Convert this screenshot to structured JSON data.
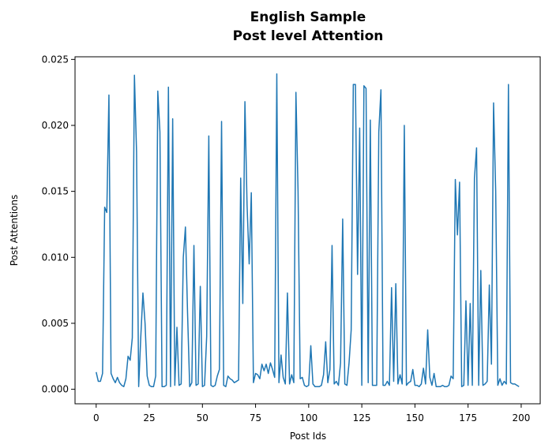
{
  "chart_data": {
    "type": "line",
    "title": "English Sample",
    "title_color": "#0000ff",
    "subtitle": "Post level Attention",
    "subtitle_color": "#ff0000",
    "xlabel": "Post Ids",
    "ylabel": "Post Attentions",
    "color": "#1f77b4",
    "xlim": [
      -9.95,
      208.95
    ],
    "xticks": [
      0,
      25,
      50,
      75,
      100,
      125,
      150,
      175,
      200
    ],
    "ylim": [
      -0.0011,
      0.0252
    ],
    "yticks": [
      {
        "value": 0,
        "label": "0.000"
      },
      0.005,
      {
        "value": 0.01,
        "label": "0.010"
      },
      0.015,
      {
        "value": 0.02,
        "label": "0.020"
      },
      0.025
    ],
    "x": [
      0,
      1,
      2,
      3,
      4,
      5,
      6,
      7,
      8,
      9,
      10,
      11,
      12,
      13,
      14,
      15,
      16,
      17,
      18,
      19,
      20,
      21,
      22,
      23,
      24,
      25,
      26,
      27,
      28,
      29,
      30,
      31,
      32,
      33,
      34,
      35,
      36,
      37,
      38,
      39,
      40,
      41,
      42,
      43,
      44,
      45,
      46,
      47,
      48,
      49,
      50,
      51,
      52,
      53,
      54,
      55,
      56,
      57,
      58,
      59,
      60,
      61,
      62,
      63,
      64,
      65,
      66,
      67,
      68,
      69,
      70,
      71,
      72,
      73,
      74,
      75,
      76,
      77,
      78,
      79,
      80,
      81,
      82,
      83,
      84,
      85,
      86,
      87,
      88,
      89,
      90,
      91,
      92,
      93,
      94,
      95,
      96,
      97,
      98,
      99,
      100,
      101,
      102,
      103,
      104,
      105,
      106,
      107,
      108,
      109,
      110,
      111,
      112,
      113,
      114,
      115,
      116,
      117,
      118,
      119,
      120,
      121,
      122,
      123,
      124,
      125,
      126,
      127,
      128,
      129,
      130,
      131,
      132,
      133,
      134,
      135,
      136,
      137,
      138,
      139,
      140,
      141,
      142,
      143,
      144,
      145,
      146,
      147,
      148,
      149,
      150,
      151,
      152,
      153,
      154,
      155,
      156,
      157,
      158,
      159,
      160,
      161,
      162,
      163,
      164,
      165,
      166,
      167,
      168,
      169,
      170,
      171,
      172,
      173,
      174,
      175,
      176,
      177,
      178,
      179,
      180,
      181,
      182,
      183,
      184,
      185,
      186,
      187,
      188,
      189,
      190,
      191,
      192,
      193,
      194,
      195,
      196,
      197,
      198,
      199
    ],
    "values": [
      0.0013,
      0.0006,
      0.0006,
      0.0012,
      0.0138,
      0.0134,
      0.0223,
      0.0012,
      0.0008,
      0.0005,
      0.0009,
      0.0005,
      0.0003,
      0.0002,
      0.0008,
      0.0025,
      0.0022,
      0.0039,
      0.0238,
      0.018,
      0.0002,
      0.004,
      0.0073,
      0.005,
      0.001,
      0.0003,
      0.0002,
      0.0002,
      0.001,
      0.0226,
      0.0195,
      0.0002,
      0.0002,
      0.0003,
      0.0229,
      0.0002,
      0.0205,
      0.0003,
      0.0047,
      0.0003,
      0.0004,
      0.01,
      0.0123,
      0.0058,
      0.0002,
      0.0005,
      0.0109,
      0.0003,
      0.0004,
      0.0078,
      0.0002,
      0.0003,
      0.004,
      0.0192,
      0.0003,
      0.0002,
      0.0003,
      0.001,
      0.0015,
      0.0203,
      0.0003,
      0.0002,
      0.001,
      0.0008,
      0.0007,
      0.0005,
      0.0006,
      0.0007,
      0.016,
      0.0065,
      0.0218,
      0.014,
      0.0095,
      0.0149,
      0.0005,
      0.0012,
      0.0011,
      0.0008,
      0.0019,
      0.0014,
      0.0019,
      0.0012,
      0.002,
      0.0015,
      0.0009,
      0.0239,
      0.0005,
      0.0026,
      0.0009,
      0.0004,
      0.0073,
      0.0004,
      0.0011,
      0.0005,
      0.0225,
      0.015,
      0.0008,
      0.0009,
      0.0003,
      0.0002,
      0.0003,
      0.0033,
      0.0004,
      0.0002,
      0.0002,
      0.0002,
      0.0003,
      0.0011,
      0.0036,
      0.0005,
      0.0015,
      0.0109,
      0.0004,
      0.0006,
      0.0003,
      0.002,
      0.0129,
      0.0004,
      0.0003,
      0.002,
      0.0045,
      0.0231,
      0.0231,
      0.0087,
      0.0198,
      0.0003,
      0.023,
      0.0228,
      0.0005,
      0.0204,
      0.0003,
      0.0003,
      0.0003,
      0.0195,
      0.0227,
      0.0003,
      0.0003,
      0.0006,
      0.0003,
      0.0077,
      0.0006,
      0.008,
      0.0004,
      0.0011,
      0.0004,
      0.02,
      0.0003,
      0.0005,
      0.0006,
      0.0015,
      0.0003,
      0.0003,
      0.0002,
      0.0004,
      0.0016,
      0.0004,
      0.0045,
      0.0009,
      0.0003,
      0.0012,
      0.0002,
      0.0002,
      0.0002,
      0.0003,
      0.0002,
      0.0002,
      0.0003,
      0.001,
      0.0008,
      0.0159,
      0.0117,
      0.0157,
      0.0002,
      0.0003,
      0.0067,
      0.0003,
      0.0065,
      0.0003,
      0.016,
      0.0183,
      0.0003,
      0.009,
      0.0003,
      0.0004,
      0.0006,
      0.0079,
      0.0019,
      0.0217,
      0.015,
      0.0003,
      0.0008,
      0.0003,
      0.0006,
      0.0004,
      0.0231,
      0.0005,
      0.0004,
      0.0004,
      0.0003,
      0.0002
    ]
  }
}
